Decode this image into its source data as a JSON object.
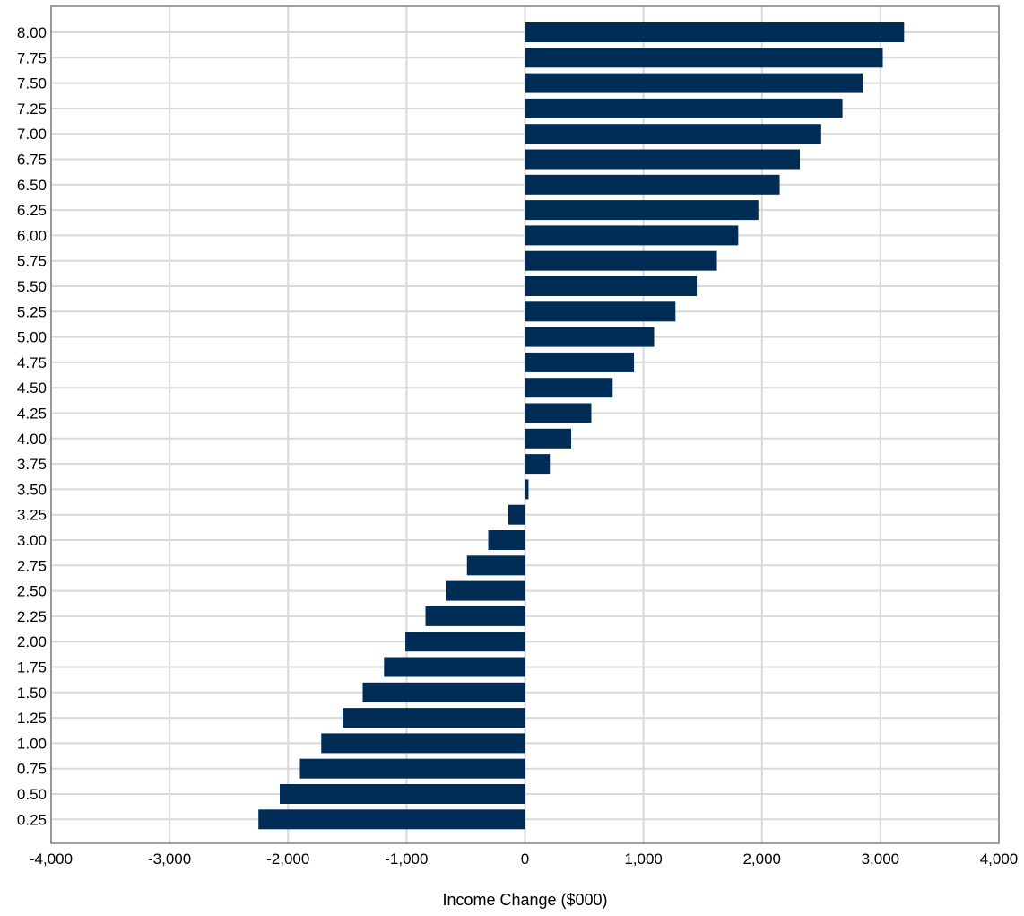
{
  "chart_data": {
    "type": "bar",
    "orientation": "horizontal",
    "title": "",
    "xlabel": "Income Change ($000)",
    "ylabel": "",
    "categories": [
      "0.25",
      "0.50",
      "0.75",
      "1.00",
      "1.25",
      "1.50",
      "1.75",
      "2.00",
      "2.25",
      "2.50",
      "2.75",
      "3.00",
      "3.25",
      "3.50",
      "3.75",
      "4.00",
      "4.25",
      "4.50",
      "4.75",
      "5.00",
      "5.25",
      "5.50",
      "5.75",
      "6.00",
      "6.25",
      "6.50",
      "6.75",
      "7.00",
      "7.25",
      "7.50",
      "7.75",
      "8.00"
    ],
    "values": [
      -2250,
      -2070,
      -1900,
      -1720,
      -1540,
      -1370,
      -1190,
      -1010,
      -840,
      -670,
      -490,
      -310,
      -140,
      30,
      210,
      390,
      560,
      740,
      920,
      1090,
      1270,
      1450,
      1620,
      1800,
      1970,
      2150,
      2320,
      2500,
      2680,
      2850,
      3020,
      3200
    ],
    "xlim": [
      -4000,
      4000
    ],
    "xticks": [
      -4000,
      -3000,
      -2000,
      -1000,
      0,
      1000,
      2000,
      3000,
      4000
    ],
    "xtick_labels": [
      "-4,000",
      "-3,000",
      "-2,000",
      "-1,000",
      "0",
      "1,000",
      "2,000",
      "3,000",
      "4,000"
    ],
    "grid": true,
    "bar_color": "#002d56",
    "grid_color": "#d9d9d9",
    "frame_color": "#808080"
  }
}
